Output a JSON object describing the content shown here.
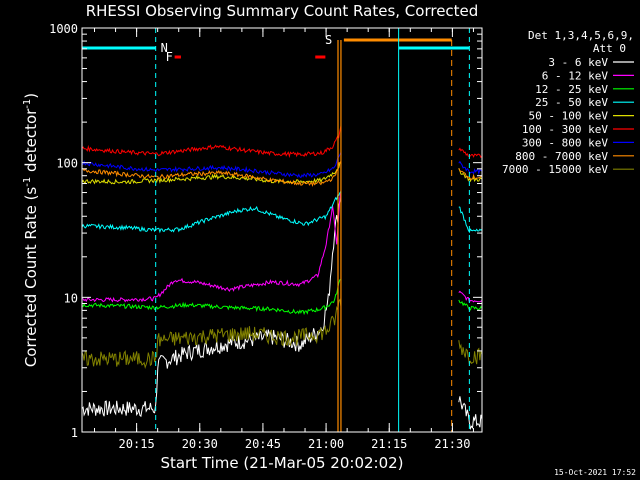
{
  "chart_data": {
    "type": "line",
    "title": "RHESSI Observing Summary Count Rates, Corrected",
    "xlabel": "Start Time (21-Mar-05 20:02:02)",
    "ylabel_main": "Corrected Count Rate (s",
    "ylabel_sup1": "-1",
    "ylabel_mid": " detector",
    "ylabel_sup2": "-1",
    "ylabel_end": ")",
    "y_scale": "log",
    "ylim": [
      1,
      1000
    ],
    "xlim_minutes": [
      0,
      95
    ],
    "x_ticks": [
      {
        "label": "20:15",
        "min": 12.97
      },
      {
        "label": "20:30",
        "min": 27.97
      },
      {
        "label": "20:45",
        "min": 42.97
      },
      {
        "label": "21:00",
        "min": 57.97
      },
      {
        "label": "21:15",
        "min": 72.97
      },
      {
        "label": "21:30",
        "min": 87.97
      }
    ],
    "y_ticks": [
      {
        "label": "1",
        "value": 1
      },
      {
        "label": "10",
        "value": 10
      },
      {
        "label": "100",
        "value": 100
      },
      {
        "label": "1000",
        "value": 1000
      }
    ],
    "detectors_line1": "Det 1,3,4,5,6,9,",
    "detectors_line2": "Att 0",
    "timestamp": "15-Oct-2021 17:52",
    "data_gap_minutes": [
      61.5,
      89.5
    ],
    "flags": {
      "N_label": "N",
      "F_label": "F",
      "S_label": "S",
      "night_segments": [
        [
          0,
          17.5
        ],
        [
          75.2,
          92
        ]
      ],
      "flare_segments": [
        [
          22,
          23.5
        ],
        [
          55.4,
          57.8
        ]
      ],
      "saa_segments": [
        [
          62.2,
          87.8
        ]
      ],
      "cyan_vlines": [
        17.5,
        75.2,
        92
      ],
      "orange_vlines_solid": [
        60.8,
        61.5
      ],
      "orange_vlines_dashed": [
        87.8
      ]
    },
    "series": [
      {
        "name": "3 - 6 keV",
        "color": "#ffffff",
        "x": [
          0,
          17.5,
          18,
          25,
          35,
          45,
          52,
          55,
          57,
          58.5,
          60,
          60.6,
          61.4,
          89.5,
          92
        ],
        "y": [
          1.5,
          1.5,
          3.2,
          3.9,
          4.6,
          5.1,
          4.5,
          5.3,
          6,
          9.5,
          33,
          38,
          60,
          1.8,
          1.2
        ]
      },
      {
        "name": "6 - 12 keV",
        "color": "#ff00ff",
        "x": [
          0,
          10,
          17.5,
          22,
          27,
          35,
          45,
          52,
          56,
          58,
          59.5,
          60.5,
          61.4,
          89.5,
          92
        ],
        "y": [
          9.6,
          9.6,
          9.8,
          13.5,
          13,
          11.5,
          13,
          12.5,
          14.5,
          25,
          47,
          25,
          62,
          11,
          9.5
        ]
      },
      {
        "name": "12 - 25 keV",
        "color": "#00ff00",
        "x": [
          0,
          10,
          17.5,
          25,
          35,
          45,
          52,
          56,
          58,
          60,
          61.4,
          89.5,
          92
        ],
        "y": [
          8.8,
          8.6,
          8.4,
          8.8,
          8.4,
          8.2,
          7.7,
          8.1,
          8.5,
          9.5,
          14,
          9.5,
          8.3
        ]
      },
      {
        "name": "25 - 50 keV",
        "color": "#00ffff",
        "x": [
          0,
          10,
          17.5,
          23,
          30,
          37,
          41,
          47,
          53,
          58,
          60.5,
          61.4,
          89.5,
          92
        ],
        "y": [
          34,
          33,
          31.5,
          32,
          38,
          44,
          46,
          39,
          35,
          40,
          55,
          60,
          48,
          31
        ]
      },
      {
        "name": "50 - 100 keV",
        "color": "#dddd00",
        "x": [
          0,
          10,
          17.5,
          25,
          33,
          40,
          45,
          52,
          57,
          60,
          61.4,
          89.5,
          92
        ],
        "y": [
          73,
          72,
          74,
          76,
          79,
          76,
          73,
          72,
          74,
          85,
          98,
          88,
          75
        ]
      },
      {
        "name": "100 - 300 keV",
        "color": "#ff0000",
        "x": [
          0,
          10,
          17.5,
          25,
          32,
          40,
          45,
          52,
          57,
          59.5,
          61,
          61.4,
          89.5,
          92
        ],
        "y": [
          128,
          120,
          116,
          124,
          132,
          122,
          117,
          115,
          118,
          132,
          158,
          182,
          128,
          112
        ]
      },
      {
        "name": "300 - 800 keV",
        "color": "#0000ff",
        "x": [
          0,
          10,
          17.5,
          25,
          33,
          40,
          45,
          52,
          57,
          60,
          61.4,
          89.5,
          92
        ],
        "y": [
          100,
          92,
          88,
          90,
          92,
          88,
          84,
          80,
          82,
          92,
          120,
          100,
          86
        ]
      },
      {
        "name": "800 - 7000 keV",
        "color": "#ff8c00",
        "x": [
          0,
          10,
          17.5,
          25,
          33,
          40,
          45,
          52,
          57,
          60,
          61.4,
          89.5,
          92
        ],
        "y": [
          88,
          82,
          78,
          82,
          84,
          79,
          74,
          70,
          70,
          78,
          105,
          88,
          78
        ]
      },
      {
        "name": "7000 - 15000 keV",
        "color": "#808000",
        "x": [
          0,
          10,
          17.5,
          18,
          30,
          40,
          50,
          56,
          58,
          60,
          61.4,
          89.5,
          92
        ],
        "y": [
          3.5,
          3.5,
          3.5,
          4.8,
          5.2,
          5.4,
          5.0,
          5.4,
          5.6,
          6.8,
          9.8,
          4.5,
          3.7
        ]
      }
    ]
  }
}
